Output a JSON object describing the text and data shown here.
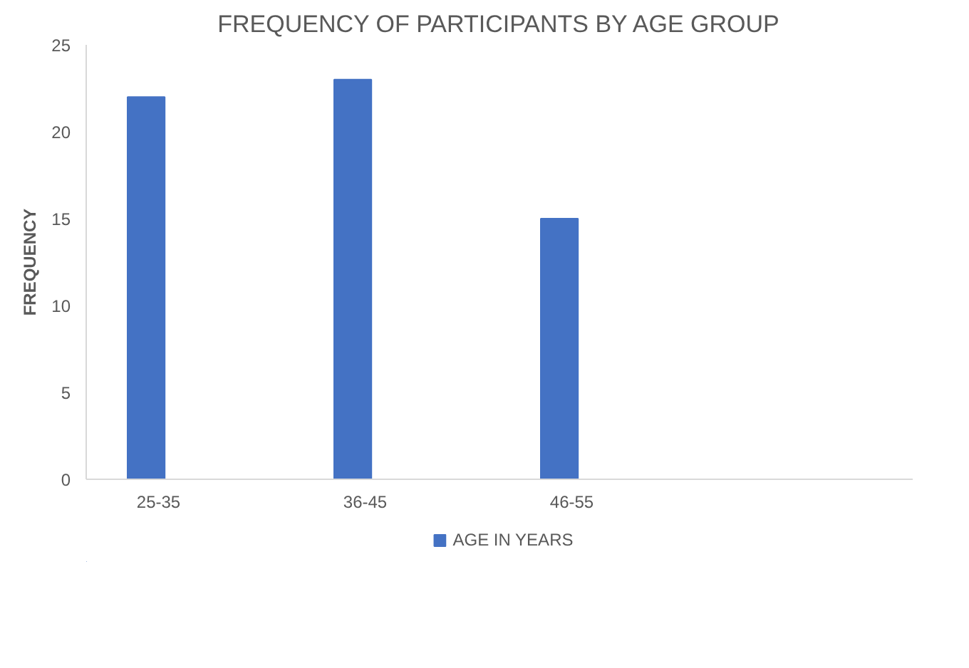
{
  "chart_data": {
    "type": "bar",
    "title": "FREQUENCY OF PARTICIPANTS BY AGE GROUP",
    "ylabel": "FREQUENCY",
    "categories": [
      "25-35",
      "36-45",
      "46-55",
      null
    ],
    "series": [
      {
        "name": "AGE IN YEARS",
        "color": "#4472c4",
        "values": [
          22,
          23,
          15,
          null
        ]
      }
    ],
    "ylim": [
      0,
      25
    ],
    "yticks": [
      0,
      5,
      10,
      15,
      20,
      25
    ],
    "grid": false,
    "legend": "bottom"
  }
}
